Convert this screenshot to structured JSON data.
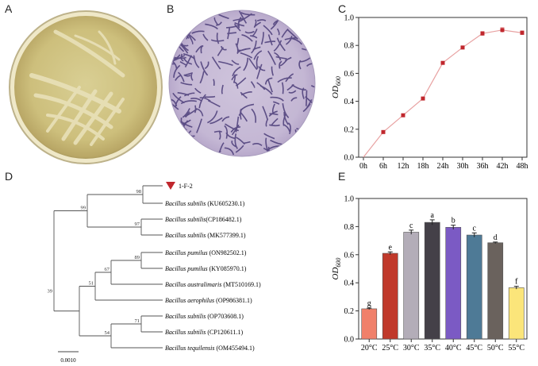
{
  "panels": {
    "A": "A",
    "B": "B",
    "C": "C",
    "D": "D",
    "E": "E"
  },
  "chart_data": [
    {
      "panel": "C",
      "type": "line",
      "categories": [
        "0h",
        "6h",
        "12h",
        "18h",
        "24h",
        "30h",
        "36h",
        "42h",
        "48h"
      ],
      "series": [
        {
          "values": [
            0,
            0.18,
            0.3,
            0.42,
            0.675,
            0.785,
            0.885,
            0.91,
            0.89
          ],
          "errors": [
            0,
            0.005,
            0.005,
            0.005,
            0.008,
            0.01,
            0.015,
            0.018,
            0.015
          ],
          "color": "#c0272d"
        }
      ],
      "ylabel": "OD600",
      "ylabel_main": "OD",
      "ylabel_sub": "600",
      "ylim": [
        0,
        1.0
      ],
      "yticks": [
        "0.0",
        "0.2",
        "0.4",
        "0.6",
        "0.8",
        "1.0"
      ],
      "grid": false
    },
    {
      "panel": "E",
      "type": "bar",
      "categories": [
        "20°C",
        "25°C",
        "30°C",
        "35°C",
        "40°C",
        "45°C",
        "50°C",
        "55°C"
      ],
      "values": [
        0.215,
        0.61,
        0.76,
        0.83,
        0.795,
        0.74,
        0.685,
        0.365
      ],
      "errors": [
        0.005,
        0.01,
        0.015,
        0.018,
        0.015,
        0.015,
        0.005,
        0.01
      ],
      "letters": [
        "g",
        "e",
        "c",
        "a",
        "b",
        "c",
        "d",
        "f"
      ],
      "colors": [
        "#f0806a",
        "#c0392b",
        "#b3adb8",
        "#444048",
        "#7b5ac4",
        "#4e7a96",
        "#6a625d",
        "#fbe57a"
      ],
      "ylabel": "OD600",
      "ylabel_main": "OD",
      "ylabel_sub": "600",
      "ylim": [
        0,
        1.0
      ],
      "yticks": [
        "0.0",
        "0.2",
        "0.4",
        "0.6",
        "0.8",
        "1.0"
      ],
      "grid": false
    }
  ],
  "tree": {
    "leaves": [
      {
        "label": "1-F-2",
        "genus": "",
        "accession": "",
        "marked": true
      },
      {
        "genus": "Bacillus subtilis",
        "accession": " (KU605230.1)"
      },
      {
        "genus": "Bacillus subtilis",
        "accession": "(CP186482.1)"
      },
      {
        "genus": "Bacillus subtilis",
        "accession": " (MK577399.1)"
      },
      {
        "genus": "Bacillus pumilus",
        "accession": " (ON982502.1)"
      },
      {
        "genus": "Bacillus pumilus",
        "accession": " (KY085970.1)"
      },
      {
        "genus": "Bacillus australimaris",
        "accession": " (MT510169.1)"
      },
      {
        "genus": "Bacillus aerophilus",
        "accession": " (OP986381.1)"
      },
      {
        "genus": "Bacillus subtilis",
        "accession": " (OP703608.1)"
      },
      {
        "genus": "Bacillus subtilis",
        "accession": " (CP120611.1)"
      },
      {
        "genus": "Bacillus tequilensis",
        "accession": " (OM455494.1)"
      }
    ],
    "bootstrap": [
      "98",
      "99",
      "97",
      "89",
      "67",
      "51",
      "39",
      "71",
      "54"
    ],
    "scale_label": "0.0010",
    "marker_color": "#c0272d"
  }
}
